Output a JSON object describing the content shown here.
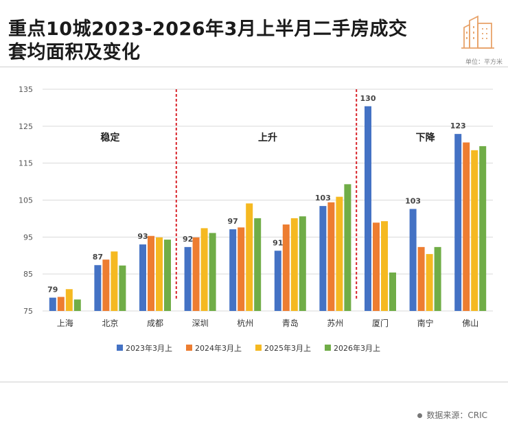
{
  "header": {
    "title_line1": "重点10城2023-2026年3月上半月二手房成交",
    "title_line2": "套均面积及变化",
    "unit": "单位：平方米",
    "icon": "building-icon"
  },
  "footer": {
    "source": "数据来源：CRIC"
  },
  "colors": {
    "accent": "#e8a36a"
  },
  "chart_data": {
    "type": "bar",
    "title": "重点10城2023-2026年3月上半月二手房成交套均面积及变化",
    "ylabel": "平方米",
    "ylim": [
      75,
      135
    ],
    "yticks": [
      75,
      85,
      95,
      105,
      115,
      125,
      135
    ],
    "grid": true,
    "legend_position": "bottom",
    "categories": [
      "上海",
      "北京",
      "成都",
      "深圳",
      "杭州",
      "青岛",
      "苏州",
      "厦门",
      "南宁",
      "佛山"
    ],
    "series": [
      {
        "name": "2023年3月上",
        "color": "#4472c4",
        "values": [
          78.6,
          87.4,
          93.0,
          92.3,
          97.1,
          91.3,
          103.4,
          130.4,
          102.6,
          122.9
        ]
      },
      {
        "name": "2024年3月上",
        "color": "#ed7d31",
        "values": [
          78.8,
          88.9,
          95.3,
          94.9,
          97.6,
          98.4,
          104.4,
          98.9,
          92.3,
          120.6
        ]
      },
      {
        "name": "2025年3月上",
        "color": "#f5b921",
        "values": [
          80.9,
          91.1,
          94.9,
          97.4,
          104.1,
          100.1,
          105.9,
          99.3,
          90.4,
          118.5
        ]
      },
      {
        "name": "2026年3月上",
        "color": "#70ad47",
        "values": [
          78.1,
          87.3,
          94.3,
          96.1,
          100.1,
          100.6,
          109.3,
          85.4,
          92.3,
          119.6
        ]
      }
    ],
    "data_labels": [
      "79",
      "87",
      "93",
      "92",
      "97",
      "91",
      "103",
      "130",
      "103",
      "123"
    ],
    "groups": [
      {
        "label": "稳定",
        "start": 0,
        "end": 2
      },
      {
        "label": "上升",
        "start": 3,
        "end": 6
      },
      {
        "label": "下降",
        "start": 7,
        "end": 9
      }
    ]
  }
}
